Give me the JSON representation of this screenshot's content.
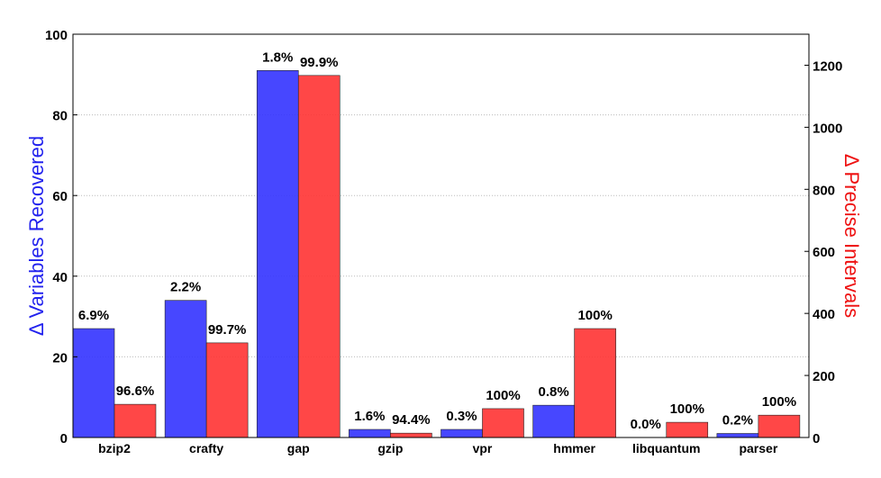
{
  "chart_data": {
    "type": "bar",
    "categories": [
      "bzip2",
      "crafty",
      "gap",
      "gzip",
      "vpr",
      "hmmer",
      "libquantum",
      "parser"
    ],
    "series": [
      {
        "axis": "left",
        "color": "#3333ff",
        "values": [
          27,
          34,
          91,
          2,
          2,
          8,
          0,
          1
        ],
        "labels": [
          "6.9%",
          "2.2%",
          "1.8%",
          "1.6%",
          "0.3%",
          "0.8%",
          "0.0%",
          "0.2%"
        ]
      },
      {
        "axis": "right",
        "color": "#ff3333",
        "values": [
          107,
          305,
          1167,
          14,
          93,
          351,
          49,
          72
        ],
        "labels": [
          "96.6%",
          "99.7%",
          "99.9%",
          "94.4%",
          "100%",
          "100%",
          "100%",
          "100%"
        ]
      }
    ],
    "ylabel": "Δ Variables Recovered",
    "ylabel_color": "#2222ee",
    "y2label": "Δ Precise Intervals",
    "y2label_color": "#ee1111",
    "ylim": [
      0,
      100
    ],
    "y2lim": [
      0,
      1300
    ],
    "yticks": [
      0,
      20,
      40,
      60,
      80,
      100
    ],
    "y2ticks": [
      0,
      200,
      400,
      600,
      800,
      1000,
      1200
    ],
    "grid": true
  }
}
